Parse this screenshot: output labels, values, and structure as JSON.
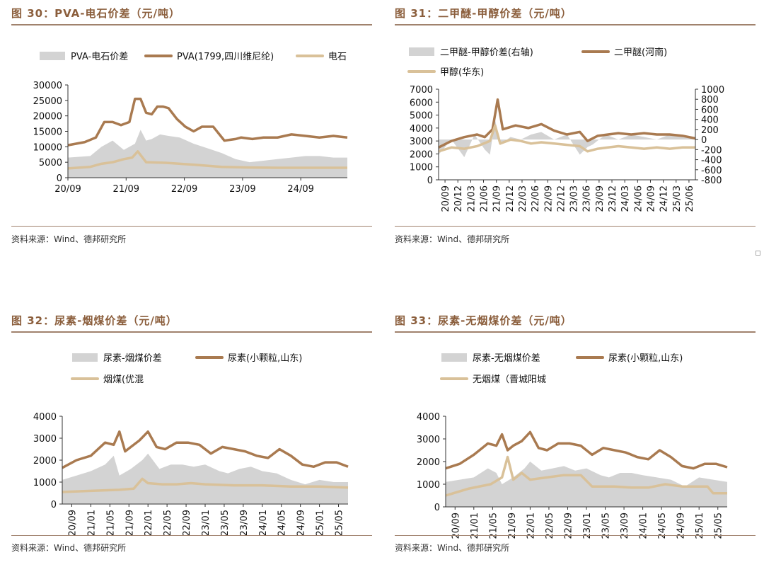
{
  "colors": {
    "area": "#D3D3D3",
    "main": "#A97A50",
    "sub": "#D9C199",
    "title": "#8B5E3C",
    "rule": "#A0826D"
  },
  "panels": [
    {
      "title": "图 30：PVA-电石价差（元/吨）",
      "source": "资料来源：Wind、德邦研究所",
      "chart_data": {
        "type": "line",
        "series": [
          {
            "name": "PVA-电石价差",
            "kind": "area",
            "x": [
              0.0,
              0.08,
              0.12,
              0.16,
              0.2,
              0.24,
              0.26,
              0.28,
              0.3,
              0.33,
              0.36,
              0.4,
              0.45,
              0.5,
              0.55,
              0.6,
              0.65,
              0.7,
              0.75,
              0.8,
              0.85,
              0.9,
              0.95,
              1.0
            ],
            "values": [
              6500,
              7000,
              10000,
              12000,
              9000,
              11000,
              15500,
              12000,
              12500,
              14000,
              13500,
              13000,
              11000,
              9500,
              8000,
              6000,
              5000,
              5500,
              6000,
              6500,
              7000,
              7000,
              6500,
              6500
            ]
          },
          {
            "name": "PVA(1799,四川维尼纶)",
            "kind": "line",
            "x": [
              0.0,
              0.06,
              0.1,
              0.13,
              0.16,
              0.19,
              0.22,
              0.24,
              0.26,
              0.28,
              0.3,
              0.32,
              0.34,
              0.36,
              0.39,
              0.42,
              0.45,
              0.48,
              0.52,
              0.56,
              0.6,
              0.62,
              0.66,
              0.7,
              0.75,
              0.8,
              0.85,
              0.9,
              0.95,
              1.0
            ],
            "values": [
              10500,
              11500,
              13000,
              18000,
              18000,
              17000,
              18000,
              25500,
              25500,
              21000,
              20500,
              23000,
              23000,
              22500,
              19000,
              16500,
              15000,
              16500,
              16500,
              12000,
              12500,
              13000,
              12500,
              13000,
              13000,
              14000,
              13500,
              13000,
              13500,
              13000
            ]
          },
          {
            "name": "电石",
            "kind": "line",
            "x": [
              0.0,
              0.08,
              0.12,
              0.16,
              0.2,
              0.23,
              0.25,
              0.28,
              0.35,
              0.45,
              0.55,
              0.65,
              0.75,
              0.85,
              1.0
            ],
            "values": [
              3000,
              3500,
              4500,
              5000,
              6000,
              6500,
              8500,
              5000,
              4800,
              4200,
              3500,
              3300,
              3200,
              3200,
              3200
            ]
          }
        ],
        "xticks": [
          "20/09",
          "21/09",
          "22/09",
          "23/09",
          "24/09"
        ],
        "ylim": [
          0,
          30000
        ],
        "yticks": [
          0,
          5000,
          10000,
          15000,
          20000,
          25000,
          30000
        ]
      }
    },
    {
      "title": "图 31：二甲醚-甲醇价差（元/吨）",
      "source": "资料来源：Wind、德邦研究所",
      "chart_data": {
        "type": "line",
        "series": [
          {
            "name": "二甲醚-甲醇价差(右轴)",
            "kind": "area",
            "axis": "right",
            "x": [
              0.0,
              0.05,
              0.1,
              0.14,
              0.18,
              0.2,
              0.22,
              0.24,
              0.28,
              0.32,
              0.36,
              0.4,
              0.45,
              0.5,
              0.55,
              0.58,
              0.6,
              0.65,
              0.7,
              0.75,
              0.8,
              0.85,
              0.9,
              0.95,
              1.0
            ],
            "values": [
              -300,
              0,
              -350,
              100,
              -200,
              -300,
              400,
              -100,
              50,
              0,
              100,
              150,
              0,
              100,
              -300,
              -150,
              -100,
              100,
              0,
              100,
              50,
              0,
              100,
              50,
              0
            ]
          },
          {
            "name": "二甲醚(河南)",
            "kind": "line",
            "axis": "left",
            "x": [
              0.0,
              0.05,
              0.1,
              0.15,
              0.18,
              0.21,
              0.23,
              0.25,
              0.3,
              0.35,
              0.4,
              0.45,
              0.5,
              0.55,
              0.58,
              0.62,
              0.66,
              0.7,
              0.75,
              0.8,
              0.85,
              0.9,
              0.95,
              1.0
            ],
            "values": [
              2500,
              3000,
              3300,
              3500,
              3300,
              3900,
              6200,
              3900,
              4200,
              4000,
              4300,
              3800,
              3500,
              3700,
              3000,
              3400,
              3500,
              3600,
              3500,
              3600,
              3500,
              3500,
              3400,
              3200
            ]
          },
          {
            "name": "甲醇(华东)",
            "kind": "line",
            "axis": "left",
            "x": [
              0.0,
              0.05,
              0.1,
              0.15,
              0.2,
              0.22,
              0.24,
              0.28,
              0.32,
              0.36,
              0.4,
              0.45,
              0.5,
              0.55,
              0.58,
              0.62,
              0.66,
              0.7,
              0.75,
              0.8,
              0.85,
              0.9,
              0.95,
              1.0
            ],
            "values": [
              2200,
              2500,
              2400,
              2600,
              3000,
              4200,
              2800,
              3100,
              3000,
              2800,
              2900,
              2800,
              2700,
              2600,
              2200,
              2400,
              2500,
              2600,
              2500,
              2400,
              2500,
              2400,
              2500,
              2500
            ]
          }
        ],
        "xticks": [
          "20/09",
          "20/12",
          "21/03",
          "21/06",
          "21/09",
          "21/12",
          "22/03",
          "22/06",
          "22/09",
          "22/12",
          "23/03",
          "23/06",
          "23/09",
          "23/12",
          "24/03",
          "24/06",
          "24/09",
          "24/12",
          "25/03",
          "25/06"
        ],
        "ylim": [
          0,
          7000
        ],
        "yticks": [
          0,
          1000,
          2000,
          3000,
          4000,
          5000,
          6000,
          7000
        ],
        "y2lim": [
          -800,
          1000
        ],
        "y2ticks": [
          -800,
          -600,
          -400,
          -200,
          0,
          200,
          400,
          600,
          800,
          1000
        ]
      }
    },
    {
      "title": "图 32：尿素-烟煤价差（元/吨）",
      "source": "资料来源：Wind、德邦研究所",
      "chart_data": {
        "type": "line",
        "series": [
          {
            "name": "尿素-烟煤价差",
            "kind": "area",
            "x": [
              0.0,
              0.05,
              0.1,
              0.15,
              0.18,
              0.2,
              0.24,
              0.28,
              0.3,
              0.34,
              0.38,
              0.42,
              0.46,
              0.5,
              0.55,
              0.58,
              0.62,
              0.66,
              0.7,
              0.75,
              0.8,
              0.85,
              0.9,
              0.95,
              1.0
            ],
            "values": [
              1100,
              1300,
              1500,
              1800,
              2200,
              1300,
              1600,
              2000,
              2300,
              1600,
              1800,
              1800,
              1700,
              1800,
              1500,
              1400,
              1600,
              1700,
              1500,
              1400,
              1100,
              900,
              1100,
              1000,
              1000
            ]
          },
          {
            "name": "尿素(小颗粒,山东)",
            "kind": "line",
            "x": [
              0.0,
              0.05,
              0.1,
              0.15,
              0.18,
              0.2,
              0.22,
              0.24,
              0.27,
              0.3,
              0.33,
              0.36,
              0.4,
              0.44,
              0.48,
              0.52,
              0.56,
              0.6,
              0.64,
              0.68,
              0.72,
              0.76,
              0.8,
              0.84,
              0.88,
              0.92,
              0.96,
              1.0
            ],
            "values": [
              1650,
              2000,
              2200,
              2800,
              2700,
              3300,
              2400,
              2600,
              2900,
              3300,
              2600,
              2500,
              2800,
              2800,
              2700,
              2300,
              2600,
              2500,
              2400,
              2200,
              2100,
              2500,
              2200,
              1800,
              1700,
              1900,
              1900,
              1700
            ]
          },
          {
            "name": "烟煤(优混",
            "kind": "line",
            "x": [
              0.0,
              0.1,
              0.2,
              0.25,
              0.28,
              0.3,
              0.35,
              0.4,
              0.45,
              0.5,
              0.6,
              0.7,
              0.8,
              0.9,
              1.0
            ],
            "values": [
              550,
              600,
              650,
              700,
              1150,
              950,
              900,
              900,
              950,
              900,
              850,
              850,
              800,
              800,
              750
            ]
          }
        ],
        "xticks": [
          "20/09",
          "21/01",
          "21/05",
          "21/09",
          "22/01",
          "22/05",
          "22/09",
          "23/01",
          "23/05",
          "23/09",
          "24/01",
          "24/05",
          "24/09",
          "25/01",
          "25/05"
        ],
        "ylim": [
          0,
          4000
        ],
        "yticks": [
          0,
          1000,
          2000,
          3000,
          4000
        ]
      }
    },
    {
      "title": "图 33：尿素-无烟煤价差（元/吨）",
      "source": "资料来源：Wind、德邦研究所",
      "chart_data": {
        "type": "line",
        "series": [
          {
            "name": "尿素-无烟煤价差",
            "kind": "area",
            "x": [
              0.0,
              0.05,
              0.1,
              0.15,
              0.18,
              0.2,
              0.24,
              0.28,
              0.3,
              0.34,
              0.38,
              0.42,
              0.46,
              0.5,
              0.55,
              0.58,
              0.62,
              0.66,
              0.7,
              0.75,
              0.8,
              0.85,
              0.9,
              0.95,
              1.0
            ],
            "values": [
              1100,
              1200,
              1300,
              1700,
              1500,
              1000,
              1300,
              1700,
              2000,
              1600,
              1700,
              1800,
              1600,
              1700,
              1400,
              1300,
              1500,
              1500,
              1400,
              1300,
              1200,
              900,
              1300,
              1200,
              1100
            ]
          },
          {
            "name": "尿素(小颗粒,山东)",
            "kind": "line",
            "x": [
              0.0,
              0.05,
              0.1,
              0.15,
              0.18,
              0.2,
              0.22,
              0.24,
              0.27,
              0.3,
              0.33,
              0.36,
              0.4,
              0.44,
              0.48,
              0.52,
              0.56,
              0.6,
              0.64,
              0.68,
              0.72,
              0.76,
              0.8,
              0.84,
              0.88,
              0.92,
              0.96,
              1.0
            ],
            "values": [
              1700,
              1900,
              2300,
              2800,
              2700,
              3200,
              2500,
              2700,
              2900,
              3300,
              2600,
              2500,
              2800,
              2800,
              2700,
              2300,
              2600,
              2500,
              2400,
              2200,
              2100,
              2500,
              2200,
              1800,
              1700,
              1900,
              1900,
              1750
            ]
          },
          {
            "name": "无烟煤（晋城阳城",
            "kind": "line",
            "x": [
              0.0,
              0.08,
              0.16,
              0.2,
              0.22,
              0.24,
              0.27,
              0.3,
              0.36,
              0.42,
              0.48,
              0.52,
              0.56,
              0.6,
              0.66,
              0.72,
              0.78,
              0.84,
              0.9,
              0.93,
              0.95,
              1.0
            ],
            "values": [
              500,
              800,
              1000,
              1300,
              2200,
              1200,
              1500,
              1200,
              1300,
              1400,
              1400,
              900,
              900,
              900,
              850,
              850,
              1000,
              900,
              900,
              900,
              600,
              600
            ]
          }
        ],
        "xticks": [
          "20/09",
          "21/01",
          "21/05",
          "21/09",
          "22/01",
          "22/05",
          "22/09",
          "23/01",
          "23/05",
          "23/09",
          "24/01",
          "24/05",
          "24/09",
          "25/01",
          "25/05"
        ],
        "ylim": [
          0,
          4000
        ],
        "yticks": [
          0,
          1000,
          2000,
          3000,
          4000
        ]
      }
    }
  ]
}
